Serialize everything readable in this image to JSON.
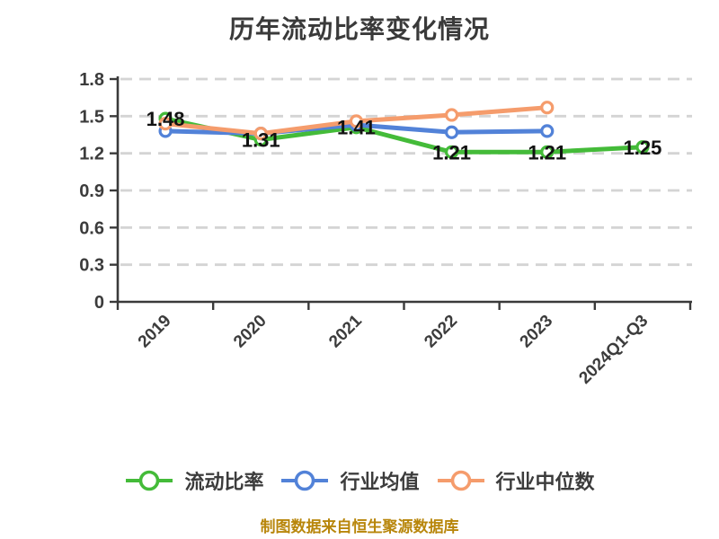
{
  "chart": {
    "title": "历年流动比率变化情况",
    "footer": "制图数据来自恒生聚源数据库"
  },
  "chart_data": {
    "type": "line",
    "title": "历年流动比率变化情况",
    "categories": [
      "2019",
      "2020",
      "2021",
      "2022",
      "2023",
      "2024Q1-Q3"
    ],
    "series": [
      {
        "name": "流动比率",
        "key": "current-ratio",
        "color": "#44bb39",
        "values": [
          1.48,
          1.31,
          1.41,
          1.21,
          1.21,
          1.25
        ],
        "labels": [
          "1.48",
          "1.31",
          "1.41",
          "1.21",
          "1.21",
          "1.25"
        ]
      },
      {
        "name": "行业均值",
        "key": "industry-average",
        "color": "#5282d8",
        "values": [
          1.38,
          1.36,
          1.43,
          1.37,
          1.38,
          null
        ],
        "labels": null
      },
      {
        "name": "行业中位数",
        "key": "industry-median",
        "color": "#f59c6c",
        "values": [
          1.44,
          1.36,
          1.46,
          1.51,
          1.57,
          null
        ],
        "labels": null
      }
    ],
    "ylim": [
      0,
      1.8
    ],
    "yticks": [
      0,
      0.3,
      0.6,
      0.9,
      1.2,
      1.5,
      1.8
    ],
    "ytick_labels": [
      "0",
      "0.3",
      "0.6",
      "0.9",
      "1.2",
      "1.5",
      "1.8"
    ],
    "xlabel": "",
    "ylabel": "",
    "grid": "horizontal-dashed",
    "legend_position": "bottom",
    "marker": "hollow-circle",
    "colors": {
      "grid_line": "#d4d4d4",
      "axis_line": "#3a3a3a",
      "tick_text": "#3c3c3c",
      "data_label_text": "#121212",
      "footer_text": "#b8860b",
      "background": "#ffffff"
    }
  }
}
